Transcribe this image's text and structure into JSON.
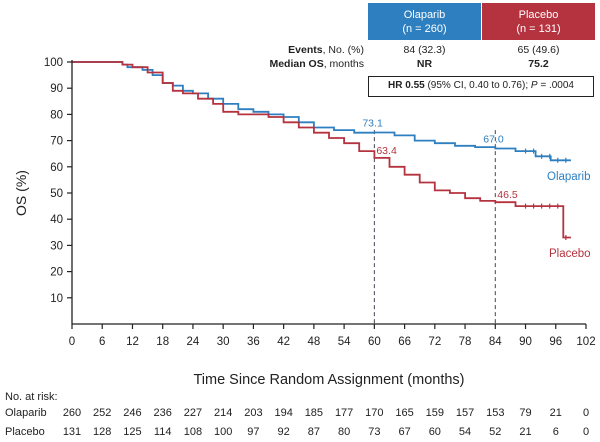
{
  "header": {
    "olaparib": {
      "name": "Olaparib",
      "n": "(n = 260)"
    },
    "placebo": {
      "name": "Placebo",
      "n": "(n = 131)"
    }
  },
  "stats": {
    "events_label_bold": "Events",
    "events_label_rest": ", No. (%)",
    "events_olaparib": "84 (32.3)",
    "events_placebo": "65 (49.6)",
    "median_label": "Median OS",
    "median_label_rest": ", months",
    "median_olaparib": "NR",
    "median_placebo": "75.2",
    "hr_bold": "HR 0.55",
    "hr_rest": " (95% CI, 0.40 to 0.76); ",
    "hr_p_label": "P",
    "hr_p_value": " = .0004"
  },
  "colors": {
    "olaparib": "#2e7fc0",
    "placebo": "#b5323f"
  },
  "chart_data": {
    "type": "line",
    "ylabel": "OS (%)",
    "xlabel": "Time Since Random Assignment (months)",
    "xlim": [
      0,
      102
    ],
    "ylim": [
      0,
      100
    ],
    "xticks": [
      0,
      6,
      12,
      18,
      24,
      30,
      36,
      42,
      48,
      54,
      60,
      66,
      72,
      78,
      84,
      90,
      96,
      102
    ],
    "yticks": [
      10,
      20,
      30,
      40,
      50,
      60,
      70,
      80,
      90,
      100
    ],
    "series": [
      {
        "name": "Olaparib",
        "x": [
          0,
          4,
          8,
          10,
          11,
          14,
          16,
          18,
          20,
          22,
          24,
          27,
          30,
          33,
          36,
          39,
          42,
          45,
          48,
          52,
          56,
          60,
          64,
          68,
          72,
          76,
          80,
          84,
          88,
          92,
          95,
          99
        ],
        "y": [
          100,
          100,
          100,
          99,
          98,
          97,
          95,
          92,
          91,
          89,
          88,
          86,
          84,
          82,
          81,
          80,
          79,
          77,
          75,
          74,
          73,
          73.1,
          72,
          70,
          69,
          68,
          67.5,
          67.0,
          66,
          64,
          62.5,
          62.5
        ]
      },
      {
        "name": "Placebo",
        "x": [
          0,
          6,
          10,
          12,
          15,
          18,
          20,
          22,
          25,
          28,
          30,
          33,
          36,
          39,
          42,
          45,
          48,
          51,
          54,
          57,
          60,
          63,
          66,
          69,
          72,
          75,
          78,
          81,
          84,
          88,
          92,
          95,
          97,
          97.5,
          99
        ],
        "y": [
          100,
          100,
          99,
          98,
          96,
          92,
          89,
          88,
          86,
          84,
          81,
          80,
          80,
          79,
          77,
          75,
          73,
          71,
          69,
          66,
          63.4,
          60,
          57,
          54,
          51,
          50,
          48,
          47,
          46.5,
          45,
          45,
          45,
          45,
          33,
          33
        ]
      }
    ],
    "annotations": [
      {
        "series": "Olaparib",
        "x": 60,
        "y": 73.1,
        "label": "73.1"
      },
      {
        "series": "Olaparib",
        "x": 84,
        "y": 67.0,
        "label": "67.0"
      },
      {
        "series": "Placebo",
        "x": 60,
        "y": 63.4,
        "label": "63.4"
      },
      {
        "series": "Placebo",
        "x": 84,
        "y": 46.5,
        "label": "46.5"
      }
    ],
    "reference_lines_x": [
      60,
      84
    ],
    "series_labels": [
      {
        "series": "Olaparib",
        "text": "Olaparib"
      },
      {
        "series": "Placebo",
        "text": "Placebo"
      }
    ],
    "risk_table": {
      "title": "No. at risk:",
      "rows": [
        {
          "name": "Olaparib",
          "values": [
            260,
            252,
            246,
            236,
            227,
            214,
            203,
            194,
            185,
            177,
            170,
            165,
            159,
            157,
            153,
            79,
            21,
            0
          ]
        },
        {
          "name": "Placebo",
          "values": [
            131,
            128,
            125,
            114,
            108,
            100,
            97,
            92,
            87,
            80,
            73,
            67,
            60,
            54,
            52,
            21,
            6,
            0
          ]
        }
      ]
    }
  }
}
